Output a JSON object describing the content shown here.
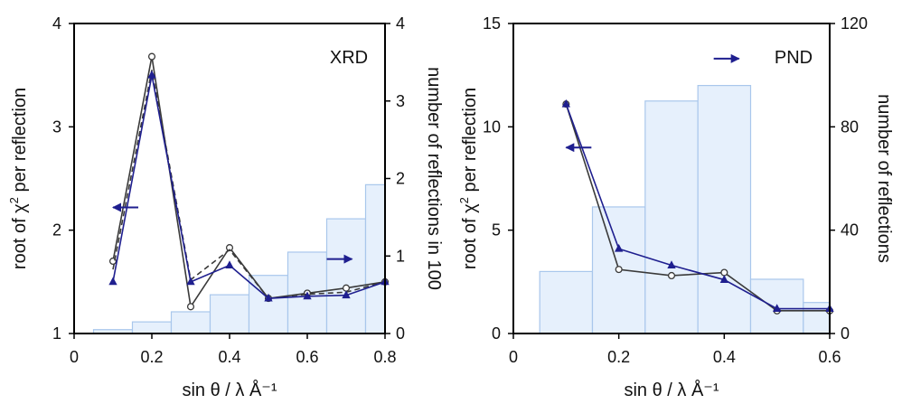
{
  "chart_data": [
    {
      "type": "line+bar",
      "panel_label": "XRD",
      "xlabel": "sin θ / λ Å⁻¹",
      "ylabel": "root of χ",
      "ylabel_sup": "2",
      "ylabel_tail": " per reflection",
      "y2label": "number of reflections in 100",
      "xlim": [
        0,
        0.8
      ],
      "ylim": [
        1,
        4
      ],
      "y2lim": [
        0,
        4
      ],
      "xticks": [
        0,
        0.2,
        0.4,
        0.6,
        0.8
      ],
      "xtick_labels": [
        "0",
        "0.2",
        "0.4",
        "0.6",
        "0.8"
      ],
      "yticks": [
        1,
        2,
        3,
        4
      ],
      "ytick_labels": [
        "1",
        "2",
        "3",
        "4"
      ],
      "y2ticks": [
        0,
        1,
        2,
        3,
        4
      ],
      "y2tick_labels": [
        "0",
        "1",
        "2",
        "3",
        "4"
      ],
      "bars": {
        "edges": [
          0.05,
          0.15,
          0.25,
          0.35,
          0.45,
          0.55,
          0.65,
          0.75,
          0.85
        ],
        "values": [
          0.05,
          0.15,
          0.28,
          0.5,
          0.75,
          1.05,
          1.48,
          1.92
        ]
      },
      "series": [
        {
          "marker": "circle",
          "color": "#3a3a3a",
          "dash": "none",
          "x": [
            0.1,
            0.2,
            0.3,
            0.4,
            0.5,
            0.6,
            0.7,
            0.8
          ],
          "y": [
            1.7,
            3.68,
            1.26,
            1.83,
            1.34,
            1.39,
            1.44,
            1.5
          ]
        },
        {
          "marker": "none",
          "color": "#3a3a3a",
          "dash": "6,4",
          "x": [
            0.1,
            0.2,
            0.3,
            0.4,
            0.5,
            0.6,
            0.7,
            0.8
          ],
          "y": [
            1.62,
            3.55,
            1.52,
            1.81,
            1.34,
            1.38,
            1.4,
            1.5
          ]
        },
        {
          "marker": "triangle",
          "color": "#1f1f8f",
          "dash": "none",
          "x": [
            0.1,
            0.2,
            0.3,
            0.4,
            0.5,
            0.6,
            0.7,
            0.8
          ],
          "y": [
            1.5,
            3.5,
            1.5,
            1.66,
            1.34,
            1.36,
            1.37,
            1.5
          ]
        }
      ],
      "arrows": [
        {
          "x": 0.1,
          "y": 2.22,
          "dir": "left"
        },
        {
          "x": 0.65,
          "y": 1.72,
          "dir": "right"
        }
      ]
    },
    {
      "type": "line+bar",
      "panel_label": "PND",
      "xlabel": "sin θ / λ Å⁻¹",
      "ylabel": "root of χ",
      "ylabel_sup": "2",
      "ylabel_tail": " per reflection",
      "y2label": "number of reflections",
      "xlim": [
        0,
        0.6
      ],
      "ylim": [
        0,
        15
      ],
      "y2lim": [
        0,
        120
      ],
      "xticks": [
        0,
        0.2,
        0.4,
        0.6
      ],
      "xtick_labels": [
        "0",
        "0.2",
        "0.4",
        "0.6"
      ],
      "yticks": [
        0,
        5,
        10,
        15
      ],
      "ytick_labels": [
        "0",
        "5",
        "10",
        "15"
      ],
      "y2ticks": [
        0,
        40,
        80,
        120
      ],
      "y2tick_labels": [
        "0",
        "40",
        "80",
        "120"
      ],
      "bars": {
        "edges": [
          0.05,
          0.15,
          0.25,
          0.35,
          0.45,
          0.55,
          0.65
        ],
        "values": [
          24,
          49,
          90,
          96,
          21,
          12
        ]
      },
      "series": [
        {
          "marker": "circle",
          "color": "#3a3a3a",
          "dash": "none",
          "x": [
            0.1,
            0.2,
            0.3,
            0.4,
            0.5,
            0.6
          ],
          "y": [
            11.1,
            3.1,
            2.8,
            2.95,
            1.1,
            1.1
          ]
        },
        {
          "marker": "triangle",
          "color": "#1f1f8f",
          "dash": "none",
          "x": [
            0.1,
            0.2,
            0.3,
            0.4,
            0.5,
            0.6
          ],
          "y": [
            11.1,
            4.1,
            3.3,
            2.6,
            1.2,
            1.2
          ]
        }
      ],
      "arrows": [
        {
          "x": 0.1,
          "y": 9.0,
          "dir": "left"
        },
        {
          "x": 0.38,
          "y": 13.3,
          "dir": "right"
        }
      ]
    }
  ]
}
